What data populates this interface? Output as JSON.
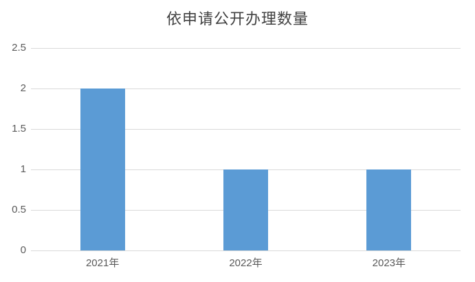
{
  "chart_data": {
    "type": "bar",
    "title": "依申请公开办理数量",
    "categories": [
      "2021年",
      "2022年",
      "2023年"
    ],
    "values": [
      2,
      1,
      1
    ],
    "xlabel": "",
    "ylabel": "",
    "ylim": [
      0,
      2.5
    ],
    "yticks": [
      0,
      0.5,
      1,
      1.5,
      2,
      2.5
    ],
    "grid": true,
    "legend": false
  },
  "colors": {
    "bar_fill": "#5B9BD5",
    "gridline": "#D9D9D9",
    "axis_label": "#595959",
    "title": "#404040",
    "background": "#FFFFFF"
  }
}
